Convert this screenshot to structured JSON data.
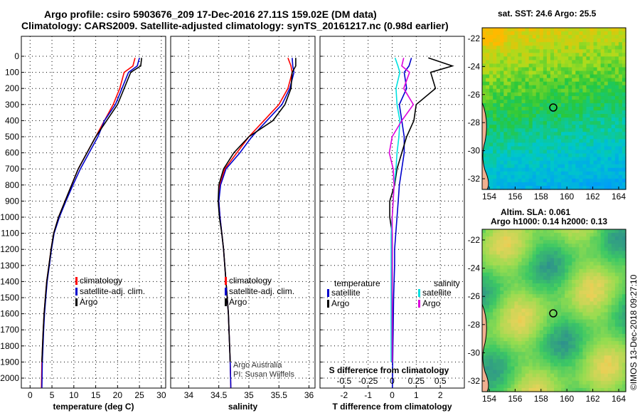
{
  "titles": {
    "line1": "Argo profile: csiro 5903676_209 17-Dec-2016 27.11S 159.02E (DM data)",
    "line2": "Climatology: CARS2009. Satellite-adjusted climatology: synTS_20161217.nc (0.98d earlier)"
  },
  "maps": {
    "sst_title": "sat. SST: 24.6 Argo: 25.5",
    "alt_title_1": "Altim. SLA: 0.061",
    "alt_title_2": "Argo h1000: 0.14 h2000: 0.13",
    "x_ticks": [
      "154",
      "156",
      "158",
      "160",
      "162",
      "164"
    ],
    "y_ticks": [
      "-22",
      "-24",
      "-26",
      "-28",
      "-30",
      "-32"
    ]
  },
  "copyright": "©IMOS 13-Dec-2018 09:27:10",
  "colors": {
    "climatology": "#ff0000",
    "satellite": "#0000cc",
    "argo": "#000000",
    "satellite_salinity": "#00e0e0",
    "argo_salinity": "#dd00dd"
  },
  "chart_data": [
    {
      "type": "line",
      "panel": "temperature",
      "xlabel": "temperature (deg C)",
      "ylabel": "",
      "xlim": [
        -2,
        31
      ],
      "ylim": [
        2080,
        0
      ],
      "x_ticks": [
        0,
        5,
        10,
        15,
        20,
        25,
        30
      ],
      "y_ticks": [
        0,
        100,
        200,
        300,
        400,
        500,
        600,
        700,
        800,
        900,
        1000,
        1100,
        1200,
        1300,
        1400,
        1500,
        1600,
        1700,
        1800,
        1900,
        2000
      ],
      "legend": [
        "climatology",
        "satellite-adj. clim.",
        "Argo"
      ],
      "series": [
        {
          "name": "climatology",
          "color": "#ff0000",
          "x": [
            24.0,
            23.5,
            21.5,
            20.5,
            19.0,
            17.0,
            15.0,
            13.0,
            11.0,
            9.5,
            8.0,
            6.5,
            5.4,
            4.8,
            4.3,
            3.8,
            3.5,
            3.2,
            3.0,
            2.85,
            2.7,
            2.6
          ],
          "y": [
            10,
            60,
            100,
            200,
            300,
            400,
            500,
            600,
            700,
            800,
            900,
            1000,
            1100,
            1200,
            1300,
            1400,
            1500,
            1600,
            1700,
            1800,
            1900,
            2060
          ]
        },
        {
          "name": "satellite-adj. clim.",
          "color": "#0000cc",
          "x": [
            25.0,
            24.5,
            22.5,
            21.0,
            19.5,
            17.0,
            15.5,
            13.5,
            11.5,
            9.8,
            8.2,
            6.7,
            5.5,
            4.9,
            4.4,
            3.9,
            3.6,
            3.3,
            3.1,
            2.95,
            2.8,
            2.7
          ],
          "y": [
            10,
            60,
            100,
            200,
            300,
            400,
            500,
            600,
            700,
            800,
            900,
            1000,
            1100,
            1200,
            1300,
            1400,
            1500,
            1600,
            1700,
            1800,
            1900,
            2060
          ]
        },
        {
          "name": "Argo",
          "color": "#000000",
          "x": [
            25.5,
            25.3,
            23.0,
            21.5,
            20.0,
            17.5,
            15.0,
            13.0,
            11.0,
            9.5,
            8.0,
            6.5,
            5.4,
            4.8,
            4.3,
            3.8,
            3.5,
            3.2,
            3.0,
            2.85,
            2.7
          ],
          "y": [
            10,
            60,
            100,
            200,
            300,
            400,
            500,
            600,
            700,
            800,
            900,
            1000,
            1100,
            1200,
            1300,
            1400,
            1500,
            1600,
            1700,
            1800,
            1900
          ]
        }
      ]
    },
    {
      "type": "line",
      "panel": "salinity",
      "xlabel": "salinity",
      "ylabel": "",
      "xlim": [
        33.7,
        36.1
      ],
      "ylim": [
        2080,
        0
      ],
      "x_ticks": [
        34,
        34.5,
        35,
        35.5,
        36
      ],
      "legend": [
        "climatology",
        "satellite-adj. clim.",
        "Argo"
      ],
      "annotations": [
        "Argo Australia",
        "PI: Susan Wijffels"
      ],
      "series": [
        {
          "name": "climatology",
          "color": "#ff0000",
          "x": [
            35.65,
            35.7,
            35.72,
            35.65,
            35.5,
            35.25,
            35.0,
            34.8,
            34.6,
            34.52,
            34.5,
            34.52,
            34.55,
            34.58,
            34.6,
            34.62,
            34.64,
            34.66,
            34.67,
            34.68,
            34.69,
            34.7
          ],
          "y": [
            10,
            60,
            100,
            200,
            300,
            400,
            500,
            600,
            700,
            800,
            900,
            1000,
            1100,
            1200,
            1300,
            1400,
            1500,
            1600,
            1700,
            1800,
            1900,
            2060
          ]
        },
        {
          "name": "satellite-adj. clim.",
          "color": "#0000cc",
          "x": [
            35.72,
            35.73,
            35.75,
            35.68,
            35.55,
            35.3,
            35.05,
            34.85,
            34.62,
            34.53,
            34.5,
            34.52,
            34.55,
            34.58,
            34.6,
            34.62,
            34.64,
            34.66,
            34.67,
            34.68,
            34.69,
            34.7
          ],
          "y": [
            10,
            60,
            100,
            200,
            300,
            400,
            500,
            600,
            700,
            800,
            900,
            1000,
            1100,
            1200,
            1300,
            1400,
            1500,
            1600,
            1700,
            1800,
            1900,
            2060
          ]
        },
        {
          "name": "Argo",
          "color": "#000000",
          "x": [
            35.78,
            35.78,
            35.72,
            35.7,
            35.6,
            35.4,
            35.0,
            34.75,
            34.58,
            34.5,
            34.49,
            34.51,
            34.55,
            34.58,
            34.6,
            34.62,
            34.64,
            34.66,
            34.67,
            34.68,
            34.69
          ],
          "y": [
            10,
            60,
            100,
            200,
            300,
            400,
            500,
            600,
            700,
            800,
            900,
            1000,
            1100,
            1200,
            1300,
            1400,
            1500,
            1600,
            1700,
            1800,
            1900
          ]
        }
      ]
    },
    {
      "type": "line",
      "panel": "difference",
      "xlabel": "T difference from climatology",
      "x2label": "S difference from climatology",
      "xlim": [
        -3,
        3
      ],
      "ylim": [
        2080,
        0
      ],
      "x_ticks": [
        -2,
        -1,
        0,
        1,
        2
      ],
      "x2_ticks": [
        "-0.5",
        "-0.25",
        "0",
        "0.25",
        "0.5"
      ],
      "legend_left_title": "temperature",
      "legend_right_title": "salinity",
      "legend": [
        "satellite",
        "Argo",
        "satellite",
        "Argo"
      ],
      "series": [
        {
          "name": "T satellite",
          "color": "#0000cc",
          "x": [
            0.8,
            0.7,
            0.5,
            0.6,
            0.3,
            0.4,
            0.5,
            0.5,
            0.4,
            0.3,
            0.25,
            0.2,
            0.15,
            0.1,
            0.1,
            0.08,
            0.06,
            0.05,
            0.04,
            0.03,
            0.02,
            0.01
          ],
          "y": [
            10,
            60,
            100,
            200,
            300,
            400,
            500,
            600,
            700,
            800,
            900,
            1000,
            1100,
            1200,
            1300,
            1400,
            1500,
            1600,
            1700,
            1800,
            1900,
            2060
          ]
        },
        {
          "name": "T Argo",
          "color": "#000000",
          "x": [
            1.5,
            2.5,
            1.6,
            1.8,
            1.0,
            0.9,
            0.6,
            0.4,
            0.2,
            0.1,
            -0.1,
            -0.1,
            0.0,
            0.0,
            0.0,
            0.0,
            0.0,
            0.0,
            0.0,
            0.0,
            0.0
          ],
          "y": [
            10,
            60,
            100,
            200,
            300,
            400,
            500,
            600,
            700,
            800,
            900,
            1000,
            1100,
            1200,
            1300,
            1400,
            1500,
            1600,
            1700,
            1800,
            1900
          ]
        },
        {
          "name": "S satellite",
          "color": "#00e0e0",
          "x": [
            0.03,
            0.06,
            0.08,
            0.04,
            0.05,
            0.08,
            0.07,
            0.05,
            0.04,
            0.02,
            0.01,
            0.0,
            -0.01,
            -0.01,
            -0.01,
            -0.01,
            -0.01,
            -0.01,
            -0.01,
            -0.01,
            -0.01
          ],
          "y": [
            10,
            60,
            100,
            200,
            300,
            400,
            500,
            600,
            700,
            800,
            900,
            1000,
            1100,
            1200,
            1300,
            1400,
            1500,
            1600,
            1700,
            1800,
            1900
          ]
        },
        {
          "name": "S Argo",
          "color": "#dd00dd",
          "x": [
            0.12,
            0.1,
            0.18,
            0.12,
            0.22,
            0.1,
            0.0,
            -0.03,
            0.01,
            0.02,
            0.01,
            0.0,
            0.0,
            0.0,
            0.0,
            0.0,
            0.0,
            0.0,
            0.0,
            0.0,
            0.0
          ],
          "y": [
            10,
            60,
            100,
            200,
            300,
            400,
            500,
            600,
            700,
            800,
            900,
            1000,
            1100,
            1200,
            1300,
            1400,
            1500,
            1600,
            1700,
            1800,
            1900
          ]
        }
      ]
    }
  ]
}
